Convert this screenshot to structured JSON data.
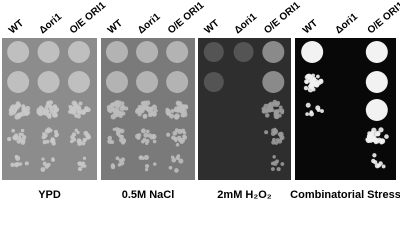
{
  "panels": [
    {
      "caption": "YPD",
      "columns": [
        "WT",
        "Δori1",
        "O/E ORI1"
      ]
    },
    {
      "caption": "0.5M NaCl",
      "columns": [
        "WT",
        "Δori1",
        "O/E ORI1"
      ]
    },
    {
      "caption": "2mM H₂O₂",
      "columns": [
        "WT",
        "Δori1",
        "O/E ORI1"
      ]
    },
    {
      "caption": "Combinatorial Stress",
      "columns": [
        "WT",
        "Δori1",
        "O/E ORI1"
      ]
    }
  ]
}
